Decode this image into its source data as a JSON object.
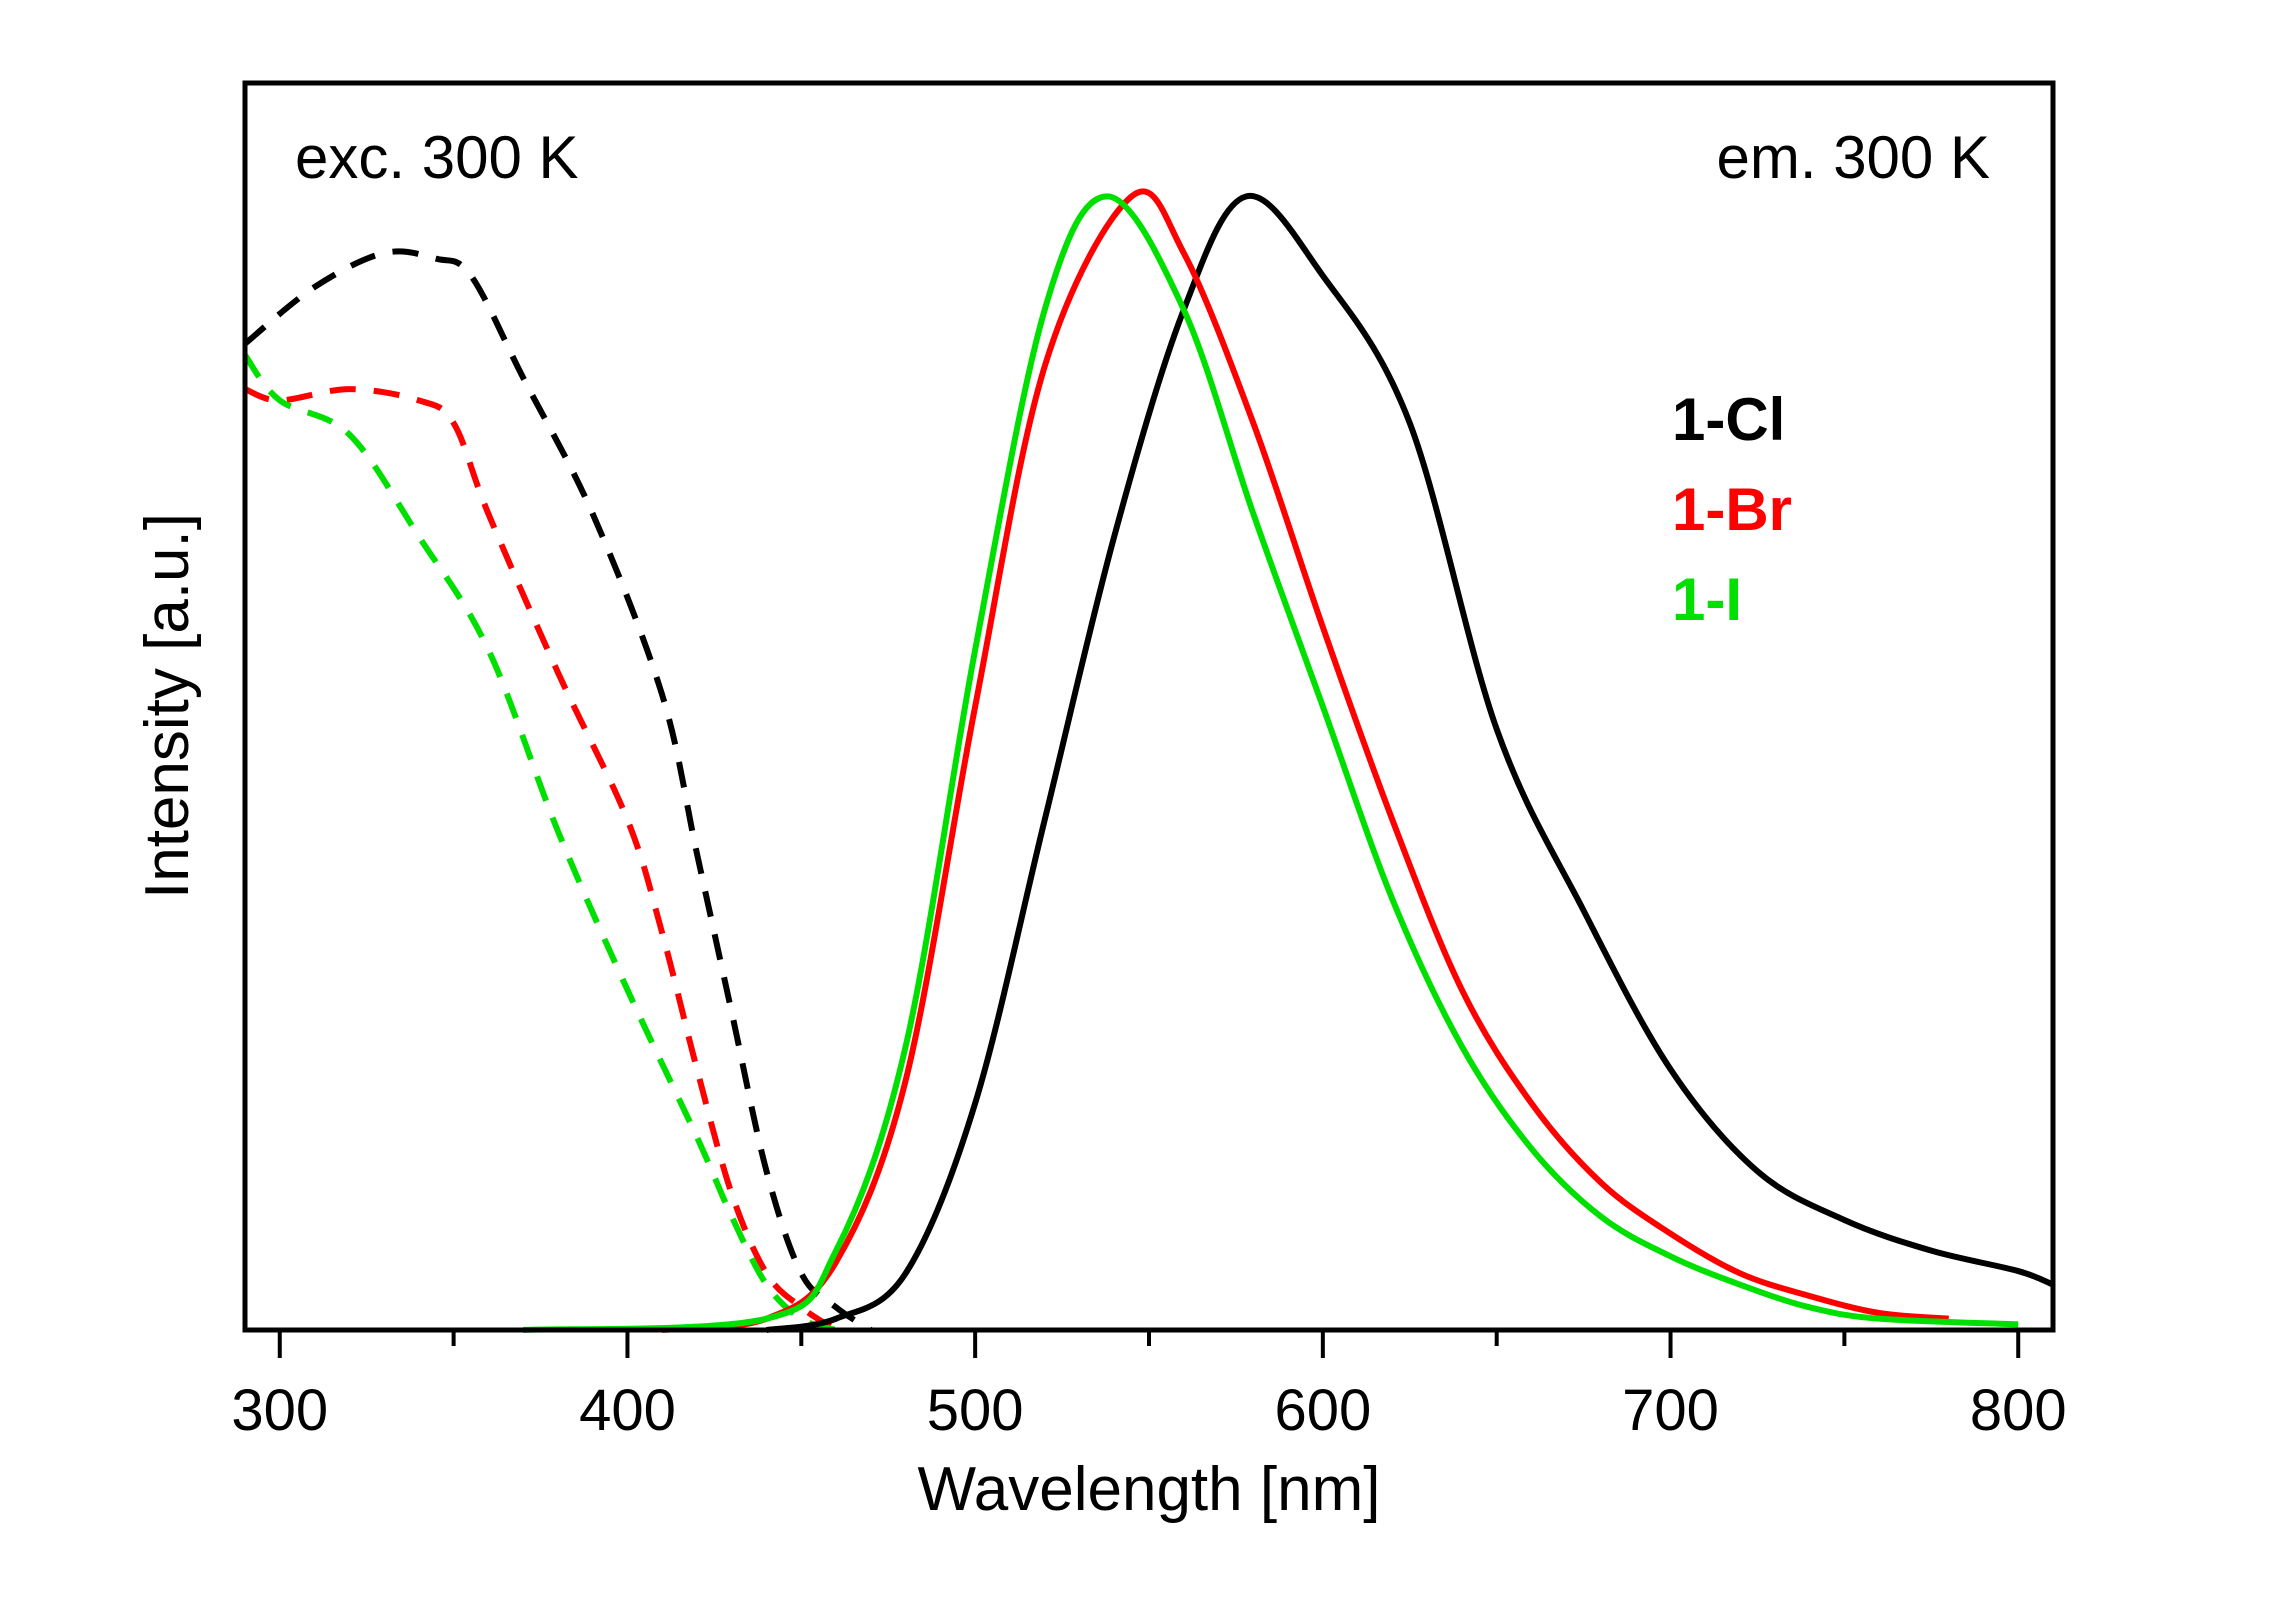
{
  "chart_data": {
    "type": "line",
    "title": "",
    "xlabel": "Wavelength [nm]",
    "ylabel": "Intensity [a.u.]",
    "xlim": [
      290,
      810
    ],
    "ylim": [
      0,
      1.1
    ],
    "xticks": [
      300,
      400,
      500,
      600,
      700,
      800
    ],
    "xminor": [
      350,
      450,
      550,
      650,
      750
    ],
    "grid": false,
    "annotations": {
      "left": "exc. 300 K",
      "right": "em. 300 K"
    },
    "legend": {
      "placement": "right",
      "entries": [
        {
          "label": "1-Cl",
          "color": "#000000"
        },
        {
          "label": "1-Br",
          "color": "#ff0000"
        },
        {
          "label": "1-I",
          "color": "#00e000"
        }
      ]
    },
    "series": [
      {
        "name": "1-Cl excitation",
        "color": "#000000",
        "style": "dashed",
        "x": [
          290,
          310,
          330,
          345,
          355,
          370,
          390,
          410,
          420,
          430,
          440,
          450,
          460,
          470
        ],
        "y": [
          0.87,
          0.92,
          0.95,
          0.945,
          0.93,
          0.84,
          0.72,
          0.56,
          0.42,
          0.28,
          0.14,
          0.05,
          0.02,
          0.0
        ]
      },
      {
        "name": "1-Br excitation",
        "color": "#ff0000",
        "style": "dashed",
        "x": [
          290,
          300,
          320,
          340,
          350,
          360,
          380,
          400,
          410,
          420,
          430,
          440,
          450,
          460
        ],
        "y": [
          0.83,
          0.82,
          0.83,
          0.82,
          0.8,
          0.72,
          0.58,
          0.45,
          0.35,
          0.23,
          0.12,
          0.05,
          0.02,
          0.0
        ]
      },
      {
        "name": "1-I excitation",
        "color": "#00e000",
        "style": "dashed",
        "x": [
          290,
          300,
          320,
          340,
          360,
          380,
          400,
          420,
          430,
          440,
          450,
          460
        ],
        "y": [
          0.86,
          0.82,
          0.79,
          0.7,
          0.6,
          0.44,
          0.3,
          0.17,
          0.1,
          0.04,
          0.01,
          0.0
        ]
      },
      {
        "name": "1-Cl emission",
        "color": "#000000",
        "style": "solid",
        "x": [
          440,
          460,
          480,
          500,
          520,
          540,
          560,
          578,
          600,
          625,
          650,
          675,
          700,
          725,
          750,
          775,
          800,
          810
        ],
        "y": [
          0.0,
          0.01,
          0.05,
          0.2,
          0.45,
          0.7,
          0.9,
          1.0,
          0.93,
          0.8,
          0.53,
          0.37,
          0.23,
          0.14,
          0.097,
          0.07,
          0.052,
          0.04
        ]
      },
      {
        "name": "1-Br emission",
        "color": "#ff0000",
        "style": "solid",
        "x": [
          410,
          440,
          460,
          480,
          500,
          520,
          545,
          560,
          580,
          600,
          620,
          640,
          660,
          680,
          700,
          720,
          740,
          760,
          780
        ],
        "y": [
          0.0,
          0.01,
          0.06,
          0.22,
          0.55,
          0.85,
          1.0,
          0.95,
          0.8,
          0.62,
          0.45,
          0.3,
          0.2,
          0.13,
          0.085,
          0.05,
          0.03,
          0.015,
          0.01
        ]
      },
      {
        "name": "1-I emission",
        "color": "#00e000",
        "style": "solid",
        "x": [
          370,
          440,
          460,
          480,
          500,
          520,
          538,
          560,
          580,
          600,
          620,
          640,
          660,
          680,
          700,
          720,
          740,
          760,
          800
        ],
        "y": [
          0.0,
          0.01,
          0.07,
          0.25,
          0.6,
          0.9,
          1.0,
          0.9,
          0.72,
          0.55,
          0.38,
          0.25,
          0.16,
          0.1,
          0.065,
          0.04,
          0.02,
          0.01,
          0.005
        ]
      }
    ]
  }
}
